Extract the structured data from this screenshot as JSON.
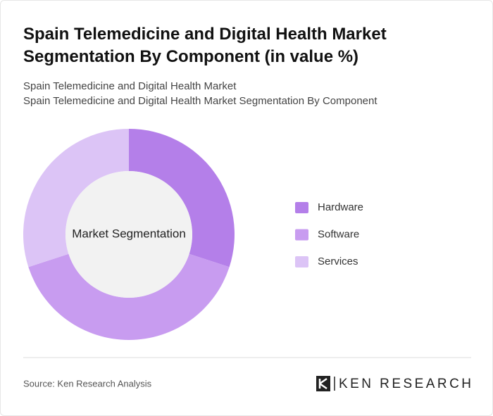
{
  "chart_data": {
    "type": "donut",
    "title": "Spain Telemedicine and Digital Health Market Segmentation By Component (in value %)",
    "subtitle": [
      "Spain Telemedicine and Digital Health Market",
      "Spain Telemedicine and Digital Health Market Segmentation By Component"
    ],
    "center_label": "Market Segmentation",
    "categories": [
      "Hardware",
      "Software",
      "Services"
    ],
    "values": [
      30,
      40,
      30
    ],
    "colors": [
      "#b47fe9",
      "#c89cf0",
      "#dcc4f6"
    ]
  },
  "footer": {
    "source": "Source: Ken Research Analysis",
    "logo": "KEN RESEARCH"
  }
}
